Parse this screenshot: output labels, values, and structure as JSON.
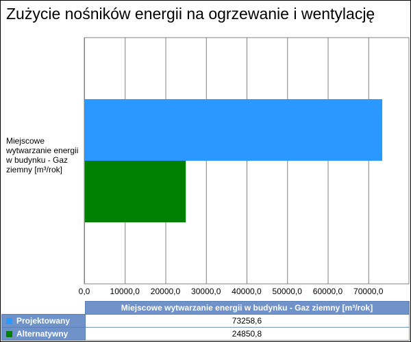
{
  "chart_data": {
    "type": "bar",
    "orientation": "horizontal",
    "title": "Zużycie nośników energii na ogrzewanie i wentylację",
    "categories": [
      "Miejscowe wytwarzanie energii w budynku - Gaz ziemny [m³/rok]"
    ],
    "series": [
      {
        "name": "Projektowany",
        "values": [
          73258.6
        ],
        "color": "#2b98ff"
      },
      {
        "name": "Alternatywny",
        "values": [
          24850.8
        ],
        "color": "#008000"
      }
    ],
    "xlim": [
      0,
      80000
    ],
    "x_ticks": [
      "0,0",
      "10000,0",
      "20000,0",
      "30000,0",
      "40000,0",
      "50000,0",
      "60000,0",
      "70000,0"
    ],
    "grid": true,
    "table": {
      "header": "Miejscowe wytwarzanie energii w budynku - Gaz ziemny [m³/rok]",
      "rows": [
        {
          "label": "Projektowany",
          "value": "73258,6",
          "color": "#2b98ff"
        },
        {
          "label": "Alternatywny",
          "value": "24850,8",
          "color": "#008000"
        }
      ]
    }
  }
}
